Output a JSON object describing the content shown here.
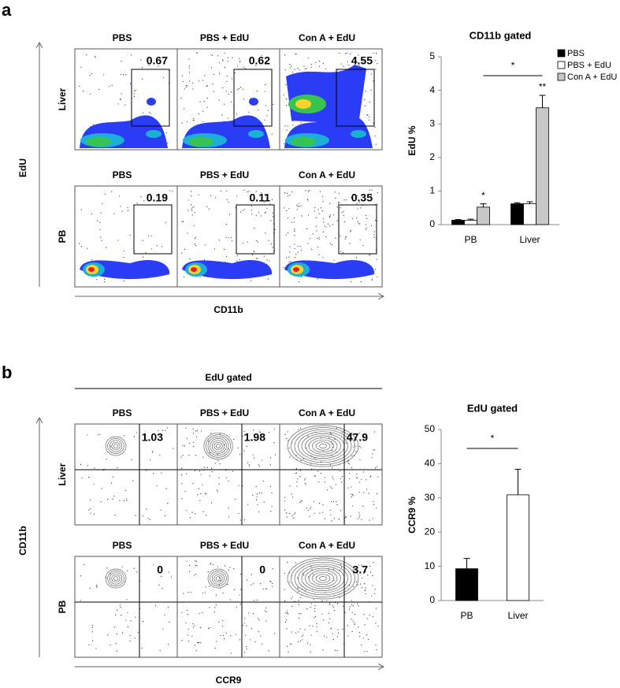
{
  "panel_labels": [
    "a",
    "b"
  ],
  "flow": [
    {
      "y_label": "EdU",
      "x_label": "CD11b",
      "rows": [
        {
          "label": "Liver",
          "plots": [
            {
              "title": "PBS",
              "value": 0.67
            },
            {
              "title": "PBS + EdU",
              "value": 0.62
            },
            {
              "title": "Con A + EdU",
              "value": 4.55
            }
          ]
        },
        {
          "label": "PB",
          "plots": [
            {
              "title": "PBS",
              "value": 0.19
            },
            {
              "title": "PBS + EdU",
              "value": 0.11
            },
            {
              "title": "Con A + EdU",
              "value": 0.35
            }
          ]
        }
      ]
    },
    {
      "header": "EdU gated",
      "y_label": "CD11b",
      "x_label": "CCR9",
      "rows": [
        {
          "label": "Liver",
          "plots": [
            {
              "title": "PBS",
              "value": 1.03
            },
            {
              "title": "PBS + EdU",
              "value": 1.98
            },
            {
              "title": "Con A + EdU",
              "value": 47.9
            }
          ]
        },
        {
          "label": "PB",
          "plots": [
            {
              "title": "PBS",
              "value": 0
            },
            {
              "title": "PBS + EdU",
              "value": 0
            },
            {
              "title": "Con A + EdU",
              "value": 3.7
            }
          ]
        }
      ]
    }
  ],
  "chart_data": [
    {
      "type": "bar",
      "title": "CD11b gated",
      "y_label": "EdU %",
      "categories": [
        "PB",
        "Liver"
      ],
      "series": [
        {
          "name": "PBS",
          "color": "#000000",
          "values": [
            0.13,
            0.62
          ],
          "errors": [
            0.02,
            0.03
          ]
        },
        {
          "name": "PBS + EdU",
          "color": "#ffffff",
          "values": [
            0.13,
            0.62
          ],
          "errors": [
            0.03,
            0.06
          ]
        },
        {
          "name": "Con A + EdU",
          "color": "#c8c8c8",
          "values": [
            0.52,
            3.48
          ],
          "errors": [
            0.1,
            0.37
          ],
          "sig_labels": [
            "*",
            "**"
          ]
        }
      ],
      "bracket_label": "*",
      "ylim": [
        0,
        5
      ],
      "yticks": [
        0,
        1,
        2,
        3,
        4,
        5
      ],
      "grid": false,
      "legend": "top-right"
    },
    {
      "type": "bar",
      "title": "EdU gated",
      "y_label": "CCR9 %",
      "categories": [
        "PB",
        "Liver"
      ],
      "values": [
        9.3,
        30.9
      ],
      "errors": [
        3.0,
        7.5
      ],
      "colors": [
        "#000000",
        "#ffffff"
      ],
      "bracket_label": "*",
      "ylim": [
        0,
        50
      ],
      "yticks": [
        0,
        10,
        20,
        30,
        40,
        50
      ],
      "grid": false
    }
  ]
}
